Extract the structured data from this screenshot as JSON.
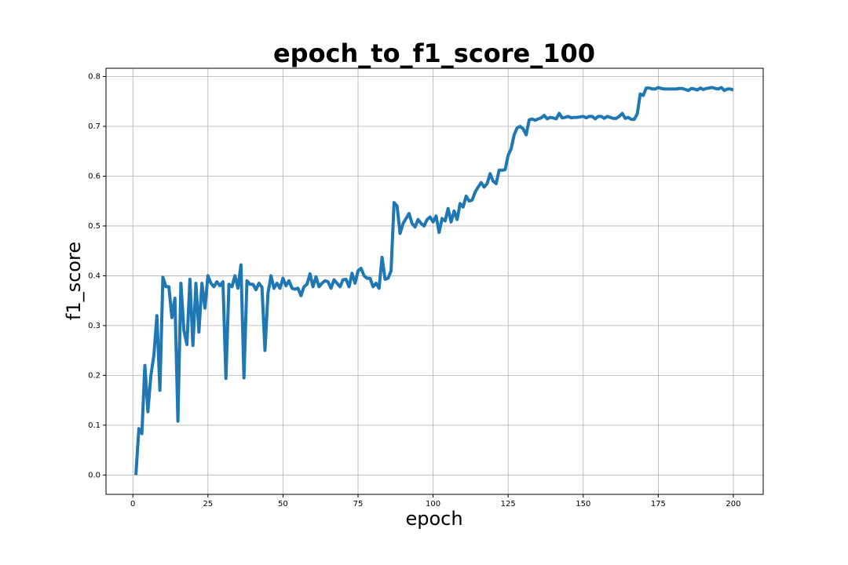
{
  "chart_data": {
    "type": "line",
    "title": "epoch_to_f1_score_100",
    "xlabel": "epoch",
    "ylabel": "f1_score",
    "x": [
      1,
      2,
      3,
      4,
      5,
      6,
      7,
      8,
      9,
      10,
      11,
      12,
      13,
      14,
      15,
      16,
      17,
      18,
      19,
      20,
      21,
      22,
      23,
      24,
      25,
      26,
      27,
      28,
      29,
      30,
      31,
      32,
      33,
      34,
      35,
      36,
      37,
      38,
      39,
      40,
      41,
      42,
      43,
      44,
      45,
      46,
      47,
      48,
      49,
      50,
      51,
      52,
      53,
      54,
      55,
      56,
      57,
      58,
      59,
      60,
      61,
      62,
      63,
      64,
      65,
      66,
      67,
      68,
      69,
      70,
      71,
      72,
      73,
      74,
      75,
      76,
      77,
      78,
      79,
      80,
      81,
      82,
      83,
      84,
      85,
      86,
      87,
      88,
      89,
      90,
      91,
      92,
      93,
      94,
      95,
      96,
      97,
      98,
      99,
      100,
      101,
      102,
      103,
      104,
      105,
      106,
      107,
      108,
      109,
      110,
      111,
      112,
      113,
      114,
      115,
      116,
      117,
      118,
      119,
      120,
      121,
      122,
      123,
      124,
      125,
      126,
      127,
      128,
      129,
      130,
      131,
      132,
      133,
      134,
      135,
      136,
      137,
      138,
      139,
      140,
      141,
      142,
      143,
      144,
      145,
      146,
      147,
      148,
      149,
      150,
      151,
      152,
      153,
      154,
      155,
      156,
      157,
      158,
      159,
      160,
      161,
      162,
      163,
      164,
      165,
      166,
      167,
      168,
      169,
      170,
      171,
      172,
      173,
      174,
      175,
      176,
      177,
      178,
      179,
      180,
      181,
      182,
      183,
      184,
      185,
      186,
      187,
      188,
      189,
      190,
      191,
      192,
      193,
      194,
      195,
      196,
      197,
      198,
      199,
      200
    ],
    "series": [
      {
        "color": "#1f77b4",
        "values": [
          0.0,
          0.093,
          0.083,
          0.22,
          0.127,
          0.2,
          0.24,
          0.32,
          0.17,
          0.397,
          0.378,
          0.378,
          0.316,
          0.355,
          0.108,
          0.385,
          0.29,
          0.262,
          0.393,
          0.26,
          0.385,
          0.287,
          0.385,
          0.335,
          0.4,
          0.385,
          0.378,
          0.388,
          0.38,
          0.388,
          0.194,
          0.383,
          0.378,
          0.4,
          0.375,
          0.422,
          0.195,
          0.39,
          0.383,
          0.383,
          0.372,
          0.385,
          0.377,
          0.25,
          0.365,
          0.4,
          0.375,
          0.385,
          0.375,
          0.395,
          0.38,
          0.39,
          0.375,
          0.373,
          0.375,
          0.36,
          0.378,
          0.383,
          0.404,
          0.378,
          0.398,
          0.378,
          0.385,
          0.39,
          0.388,
          0.375,
          0.392,
          0.385,
          0.378,
          0.392,
          0.393,
          0.378,
          0.405,
          0.385,
          0.41,
          0.415,
          0.4,
          0.395,
          0.395,
          0.378,
          0.385,
          0.375,
          0.437,
          0.393,
          0.395,
          0.41,
          0.547,
          0.54,
          0.485,
          0.505,
          0.515,
          0.525,
          0.505,
          0.498,
          0.513,
          0.505,
          0.5,
          0.513,
          0.518,
          0.508,
          0.52,
          0.487,
          0.515,
          0.51,
          0.535,
          0.508,
          0.53,
          0.513,
          0.545,
          0.538,
          0.56,
          0.55,
          0.552,
          0.568,
          0.578,
          0.587,
          0.578,
          0.585,
          0.605,
          0.59,
          0.585,
          0.612,
          0.612,
          0.613,
          0.642,
          0.655,
          0.683,
          0.697,
          0.7,
          0.695,
          0.683,
          0.713,
          0.715,
          0.712,
          0.715,
          0.717,
          0.722,
          0.715,
          0.718,
          0.717,
          0.715,
          0.726,
          0.717,
          0.718,
          0.72,
          0.717,
          0.718,
          0.718,
          0.719,
          0.72,
          0.717,
          0.72,
          0.72,
          0.715,
          0.72,
          0.72,
          0.716,
          0.72,
          0.718,
          0.716,
          0.716,
          0.72,
          0.726,
          0.716,
          0.718,
          0.714,
          0.714,
          0.725,
          0.765,
          0.762,
          0.777,
          0.777,
          0.775,
          0.775,
          0.778,
          0.776,
          0.775,
          0.775,
          0.775,
          0.775,
          0.775,
          0.776,
          0.776,
          0.774,
          0.772,
          0.776,
          0.775,
          0.773,
          0.777,
          0.774,
          0.776,
          0.777,
          0.778,
          0.776,
          0.775,
          0.778,
          0.772,
          0.775,
          0.775,
          0.773
        ]
      }
    ],
    "xlim": [
      -8.95,
      209.95
    ],
    "xticks": [
      0,
      25,
      50,
      75,
      100,
      125,
      150,
      175,
      200
    ],
    "ylim": [
      -0.0389,
      0.8166
    ],
    "yticks": [
      {
        "value": 0,
        "label": "0.0"
      },
      0.1,
      0.2,
      0.3,
      0.4,
      0.5,
      0.6,
      0.7,
      0.8
    ],
    "grid": true
  }
}
